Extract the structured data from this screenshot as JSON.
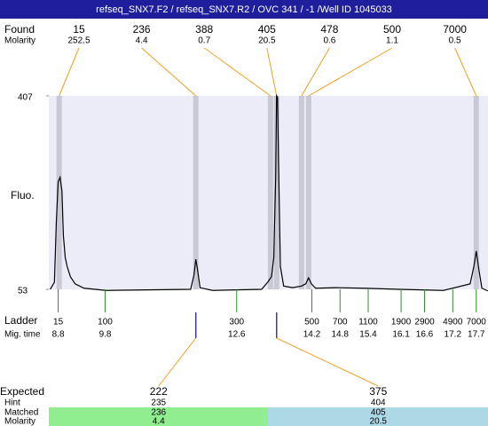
{
  "header": {
    "title": "refseq_SNX7.F2 / refseq_SNX7.R2 / OVC 341  / -1  /Well ID 1045033"
  },
  "found": {
    "label": "Found",
    "molarity_label": "Molarity",
    "peaks": [
      {
        "size": 15,
        "molarity": 252.5,
        "time": 8.82
      },
      {
        "size": 236,
        "molarity": 4.4,
        "time": 11.73
      },
      {
        "size": 388,
        "molarity": 0.7,
        "time": 13.32
      },
      {
        "size": 405,
        "molarity": 20.5,
        "time": 13.45
      },
      {
        "size": 478,
        "molarity": 0.6,
        "time": 13.98
      },
      {
        "size": 500,
        "molarity": 1.1,
        "time": 14.13
      },
      {
        "size": 7000,
        "molarity": 0.5,
        "time": 17.7
      }
    ]
  },
  "chart_data": {
    "type": "line",
    "y_label": "Fluo.",
    "x": [
      8.63,
      8.72,
      8.76,
      8.8,
      8.84,
      8.88,
      8.91,
      8.95,
      8.99,
      9.06,
      9.16,
      9.35,
      9.82,
      11.62,
      11.69,
      11.73,
      11.77,
      11.82,
      12.09,
      13.13,
      13.26,
      13.34,
      13.39,
      13.43,
      13.45,
      13.47,
      13.49,
      13.53,
      13.6,
      13.79,
      13.98,
      14.07,
      14.13,
      14.19,
      14.28,
      14.74,
      15.3,
      16.06,
      17.0,
      17.57,
      17.65,
      17.7,
      17.76,
      17.82,
      17.95
    ],
    "values": [
      53,
      66,
      176,
      250,
      258,
      233,
      152,
      111,
      95,
      76,
      63,
      55,
      51,
      53,
      79,
      108,
      87,
      56,
      51,
      53,
      66,
      76,
      111,
      258,
      407,
      404,
      290,
      95,
      59,
      56,
      59,
      63,
      74,
      63,
      55,
      56,
      55,
      53,
      51,
      63,
      95,
      123,
      87,
      55,
      50
    ],
    "color": "#000000",
    "xlim": [
      8.6,
      17.95
    ],
    "ylim": [
      53,
      407
    ],
    "yticks": [
      53,
      407
    ]
  },
  "ladder": {
    "label": "Ladder",
    "time_label": "Mig. time",
    "sizes": [
      15,
      100,
      300,
      500,
      700,
      1100,
      1900,
      2900,
      4900,
      7000
    ],
    "times": [
      8.8,
      9.8,
      12.6,
      14.2,
      14.8,
      15.4,
      16.1,
      16.6,
      17.2,
      17.7
    ]
  },
  "expected": {
    "label": "Expected",
    "hint_label": "Hint",
    "matched_label": "Matched",
    "molarity_label": "Molarity",
    "columns": [
      {
        "expected": 222,
        "hint": 235,
        "matched": 236,
        "molarity": 4.4
      },
      {
        "expected": 375,
        "hint": 404,
        "matched": 405,
        "molarity": 20.5
      }
    ]
  }
}
